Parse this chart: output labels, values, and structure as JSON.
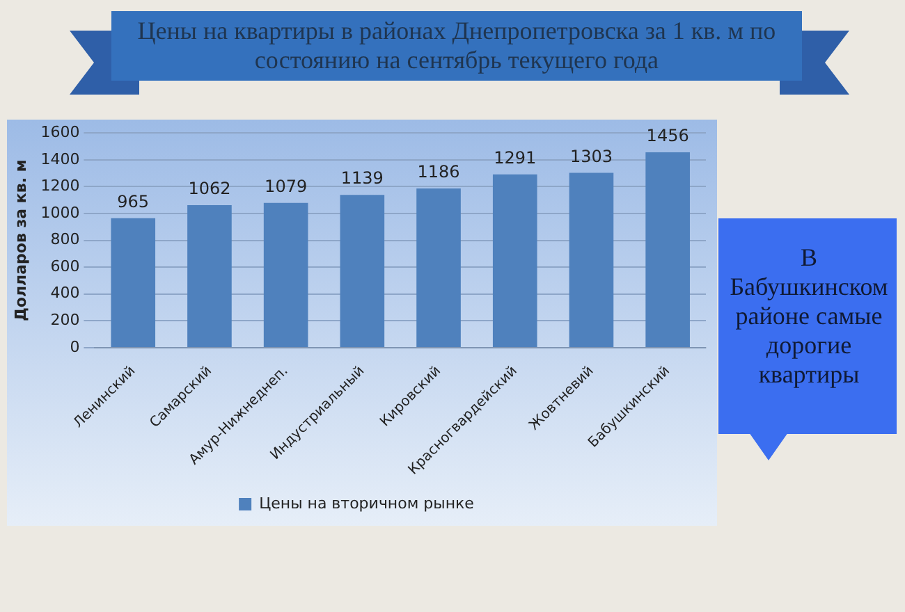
{
  "chart_data": {
    "type": "bar",
    "title": "Цены на квартиры в районах Днепропетровска за 1 кв. м по состоянию на сентябрь текущего года",
    "ylabel": "Долларов за кв. м",
    "categories": [
      "Ленинский",
      "Самарский",
      "Амур-Нижнеднеп.",
      "Индустриальный",
      "Кировский",
      "Красногвардейский",
      "Жовтневий",
      "Бабушкинский"
    ],
    "series": [
      {
        "name": "Цены на вторичном рынке",
        "color": "#4f81bd",
        "values": [
          965,
          1062,
          1079,
          1139,
          1186,
          1291,
          1303,
          1456
        ]
      }
    ],
    "ylim": [
      0,
      1600
    ],
    "yticks": [
      0,
      200,
      400,
      600,
      800,
      1000,
      1200,
      1400,
      1600
    ],
    "grid": "y",
    "legend": "bottom",
    "data_labels": true,
    "annotations": [
      "В Бабушкинском районе самые дорогие квартиры"
    ]
  }
}
